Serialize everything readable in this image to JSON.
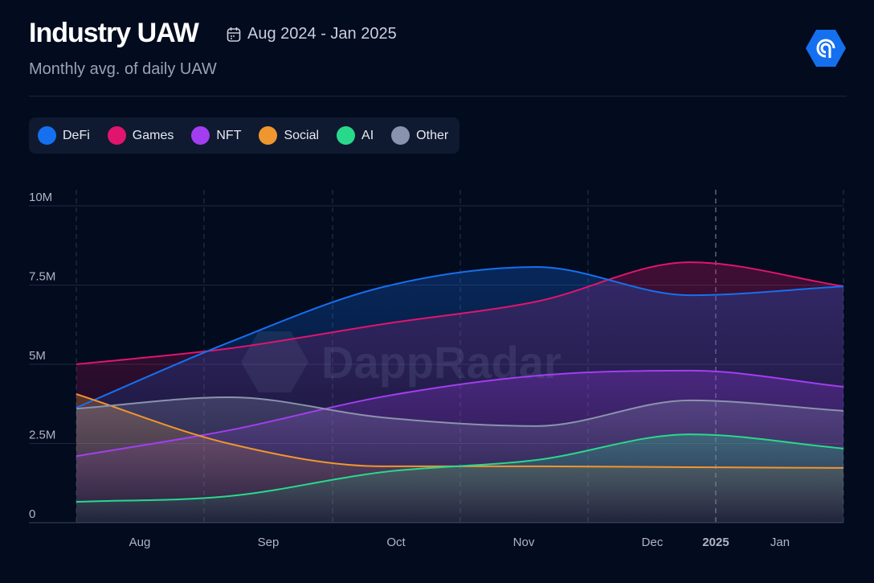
{
  "header": {
    "title": "Industry UAW",
    "date_range": "Aug 2024 - Jan 2025",
    "subtitle": "Monthly avg. of daily UAW",
    "watermark": "DappRadar"
  },
  "chart_data": {
    "type": "area",
    "title": "Industry UAW",
    "subtitle": "Monthly avg. of daily UAW",
    "xlabel": "",
    "ylabel": "",
    "x": [
      "Aug 2024",
      "Sep 2024",
      "Oct 2024",
      "Nov 2024",
      "Dec 2024",
      "Jan 2025"
    ],
    "x_tick_labels": [
      "Aug",
      "Sep",
      "Oct",
      "Nov",
      "Dec",
      "2025",
      "Jan"
    ],
    "y_tick_labels": [
      "0",
      "2.5M",
      "5M",
      "7.5M",
      "10M"
    ],
    "ylim": [
      0,
      10000000
    ],
    "grid": true,
    "legend": "top-left",
    "series": [
      {
        "name": "DeFi",
        "color": "#1570ef",
        "values": [
          3630000,
          5700000,
          7440000,
          8070000,
          7180000,
          7460000
        ]
      },
      {
        "name": "Games",
        "color": "#e0156e",
        "values": [
          5000000,
          5500000,
          6270000,
          6980000,
          8220000,
          7460000
        ]
      },
      {
        "name": "NFT",
        "color": "#a23ef0",
        "values": [
          2100000,
          2920000,
          3980000,
          4640000,
          4800000,
          4290000
        ]
      },
      {
        "name": "Social",
        "color": "#f0962e",
        "values": [
          4060000,
          2490000,
          1780000,
          1780000,
          1750000,
          1730000
        ]
      },
      {
        "name": "AI",
        "color": "#28d98c",
        "values": [
          660000,
          840000,
          1600000,
          1980000,
          2790000,
          2340000
        ]
      },
      {
        "name": "Other",
        "color": "#8a93ad",
        "values": [
          3600000,
          3960000,
          3320000,
          3050000,
          3860000,
          3530000
        ]
      }
    ]
  }
}
